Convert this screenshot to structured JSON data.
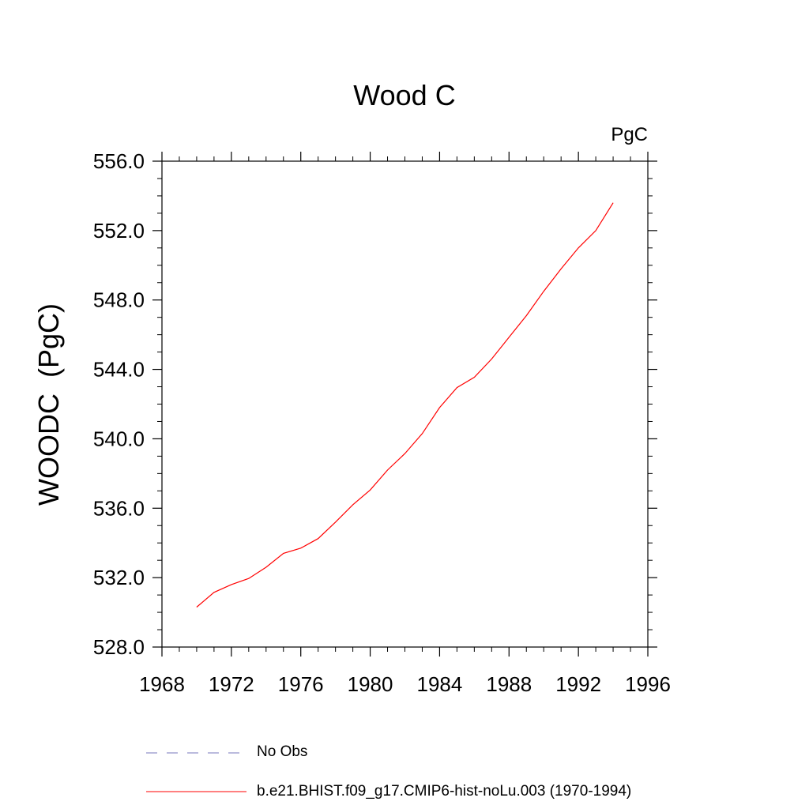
{
  "chart_data": {
    "type": "line",
    "title": "Wood C",
    "units": "PgC",
    "ylabel": "WOODC  (PgC)",
    "xlabel": "",
    "xlim": [
      1968,
      1996
    ],
    "ylim": [
      528.0,
      556.0
    ],
    "x_ticks": [
      1968,
      1972,
      1976,
      1980,
      1984,
      1988,
      1992,
      1996
    ],
    "x_tick_labels": [
      "1968",
      "1972",
      "1976",
      "1980",
      "1984",
      "1988",
      "1992",
      "1996"
    ],
    "y_ticks": [
      528.0,
      532.0,
      536.0,
      540.0,
      544.0,
      548.0,
      552.0,
      556.0
    ],
    "y_tick_labels": [
      "528.0",
      "532.0",
      "536.0",
      "540.0",
      "544.0",
      "548.0",
      "552.0",
      "556.0"
    ],
    "series": [
      {
        "name": "b.e21.BHIST.f09_g17.CMIP6-hist-noLu.003 (1970-1994)",
        "color": "#ff0000",
        "style": "solid",
        "x": [
          1970,
          1971,
          1972,
          1973,
          1974,
          1975,
          1976,
          1977,
          1978,
          1979,
          1980,
          1981,
          1982,
          1983,
          1984,
          1985,
          1986,
          1987,
          1988,
          1989,
          1990,
          1991,
          1992,
          1993,
          1994
        ],
        "values": [
          530.3,
          531.15,
          531.6,
          531.95,
          532.6,
          533.4,
          533.7,
          534.25,
          535.2,
          536.2,
          537.05,
          538.2,
          539.15,
          540.3,
          541.8,
          542.95,
          543.55,
          544.6,
          545.85,
          547.1,
          548.5,
          549.8,
          551.0,
          552.0,
          553.6
        ]
      }
    ],
    "legend": [
      {
        "label": "No Obs",
        "color": "#7777bb",
        "style": "dashed"
      },
      {
        "label": "b.e21.BHIST.f09_g17.CMIP6-hist-noLu.003 (1970-1994)",
        "color": "#ff0000",
        "style": "solid"
      }
    ],
    "legend_placement": "bottom",
    "grid": false
  }
}
